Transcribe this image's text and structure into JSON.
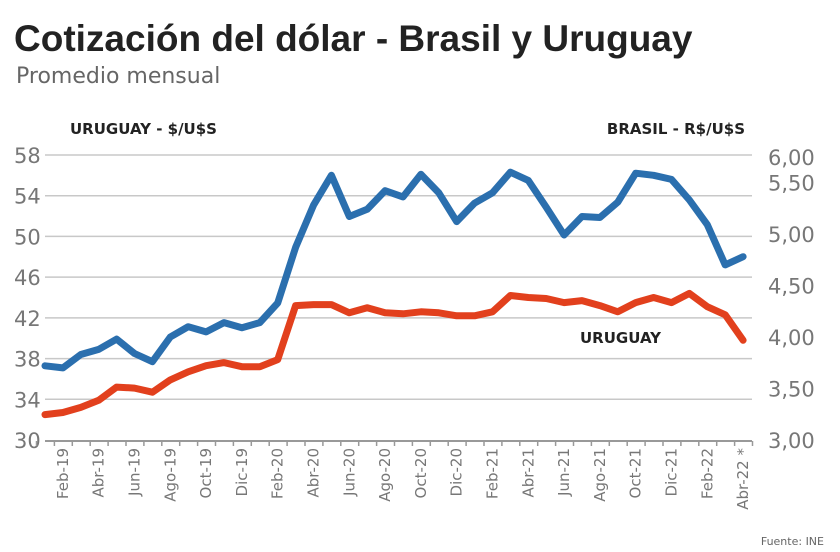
{
  "chart_data": {
    "type": "line",
    "title": "Cotización del dólar - Brasil y Uruguay",
    "subtitle": "Promedio mensual",
    "source": "Fuente: INE",
    "left_axis": {
      "label": "URUGUAY - $/U$S",
      "ylim": [
        30,
        58
      ],
      "ticks": [
        30,
        34,
        38,
        42,
        46,
        50,
        54,
        58
      ]
    },
    "right_axis": {
      "label": "BRASIL - R$/U$S",
      "ylim": [
        3.0,
        6.0
      ],
      "ticks": [
        "3,00",
        "3,50",
        "4,00",
        "4,50",
        "5,00",
        "5,50",
        "6,00"
      ],
      "tick_values": [
        3.0,
        3.5,
        4.0,
        4.5,
        5.0,
        5.5,
        6.0
      ]
    },
    "grid": true,
    "x": [
      "Ene-19",
      "Feb-19",
      "Mar-19",
      "Abr-19",
      "May-19",
      "Jun-19",
      "Jul-19",
      "Ago-19",
      "Sep-19",
      "Oct-19",
      "Nov-19",
      "Dic-19",
      "Ene-20",
      "Feb-20",
      "Mar-20",
      "Abr-20",
      "May-20",
      "Jun-20",
      "Jul-20",
      "Ago-20",
      "Sep-20",
      "Oct-20",
      "Nov-20",
      "Dic-20",
      "Ene-21",
      "Feb-21",
      "Mar-21",
      "Abr-21",
      "May-21",
      "Jun-21",
      "Jul-21",
      "Ago-21",
      "Sep-21",
      "Oct-21",
      "Nov-21",
      "Dic-21",
      "Ene-22",
      "Feb-22",
      "Mar-22",
      "Abr-22 *"
    ],
    "x_tick_labels": [
      "Feb-19",
      "Abr-19",
      "Jun-19",
      "Ago-19",
      "Oct-19",
      "Dic-19",
      "Feb-20",
      "Abr-20",
      "Jun-20",
      "Ago-20",
      "Oct-20",
      "Dic-20",
      "Feb-21",
      "Abr-21",
      "Jun-21",
      "Ago-21",
      "Oct-21",
      "Dic-21",
      "Feb-22",
      "Abr-22 *"
    ],
    "series": [
      {
        "name": "URUGUAY",
        "axis": "left",
        "color": "#e2401d",
        "values": [
          32.5,
          32.7,
          33.2,
          33.9,
          35.2,
          35.1,
          34.7,
          35.9,
          36.7,
          37.3,
          37.6,
          37.2,
          37.2,
          37.9,
          43.2,
          43.3,
          43.3,
          42.5,
          43.0,
          42.5,
          42.4,
          42.6,
          42.5,
          42.2,
          42.2,
          42.6,
          44.2,
          44.0,
          43.9,
          43.5,
          43.7,
          43.2,
          42.6,
          43.5,
          44.0,
          43.5,
          44.4,
          43.1,
          42.3,
          39.8
        ]
      },
      {
        "name": "BRASIL",
        "axis": "right",
        "color": "#2b6fae",
        "values": [
          3.72,
          3.7,
          3.83,
          3.88,
          3.98,
          3.84,
          3.76,
          4.0,
          4.1,
          4.05,
          4.14,
          4.09,
          4.14,
          4.33,
          4.87,
          5.28,
          5.57,
          5.17,
          5.24,
          5.42,
          5.36,
          5.58,
          5.4,
          5.12,
          5.3,
          5.4,
          5.6,
          5.52,
          5.26,
          4.99,
          5.17,
          5.16,
          5.31,
          5.59,
          5.57,
          5.53,
          5.33,
          5.09,
          4.7,
          4.78
        ]
      }
    ],
    "annotations": [
      "URUGUAY"
    ]
  }
}
